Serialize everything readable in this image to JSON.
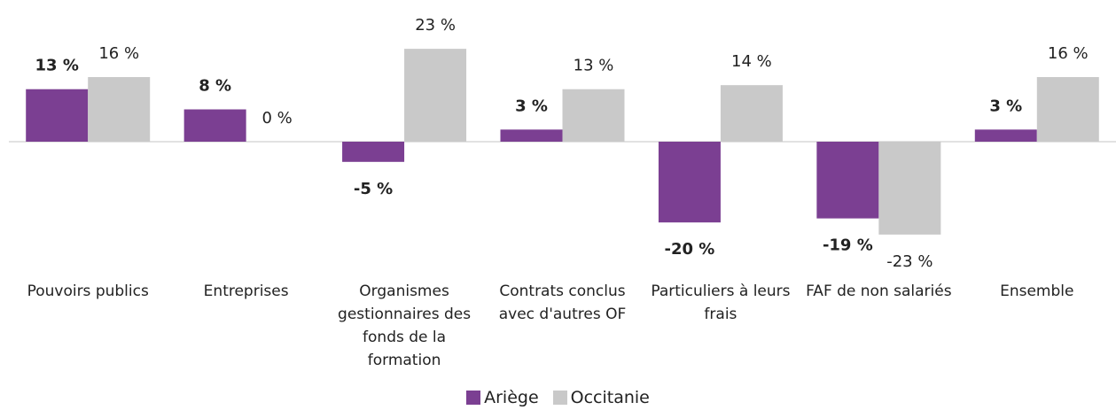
{
  "chart_data": {
    "type": "bar",
    "categories": [
      "Pouvoirs publics",
      "Entreprises",
      "Organismes gestionnaires des fonds de la formation",
      "Contrats conclus avec d'autres OF",
      "Particuliers à leurs frais",
      "FAF de non salariés",
      "Ensemble"
    ],
    "series": [
      {
        "name": "Ariège",
        "color": "#7b3f92",
        "values": [
          13,
          8,
          -5,
          3,
          -20,
          -19,
          3
        ],
        "value_labels": [
          "13 %",
          "8 %",
          "-5 %",
          "3 %",
          "-20 %",
          "-19 %",
          "3 %"
        ]
      },
      {
        "name": "Occitanie",
        "color": "#c9c9c9",
        "values": [
          16,
          0,
          23,
          13,
          14,
          -23,
          16
        ],
        "value_labels": [
          "16 %",
          "0 %",
          "23 %",
          "13 %",
          "14 %",
          "-23 %",
          "16 %"
        ]
      }
    ],
    "ylim": [
      -25,
      25
    ],
    "legend": "bottom"
  }
}
